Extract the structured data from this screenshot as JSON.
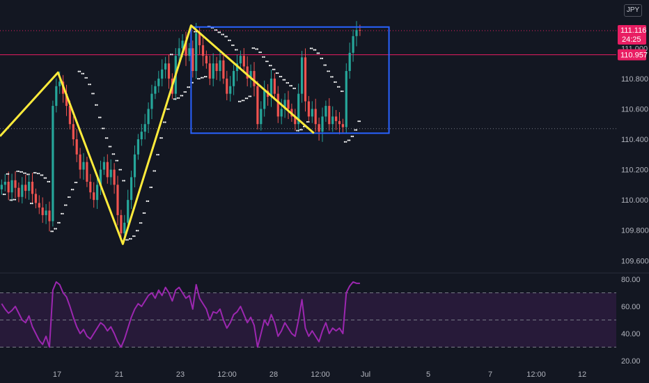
{
  "currency_button": "JPY",
  "last_price": {
    "value": "111.116",
    "countdown": "24:25"
  },
  "level_line": {
    "value": "110.957"
  },
  "colors": {
    "background": "#131722",
    "bull_candle": "#26a69a",
    "bear_candle": "#ef5350",
    "zigzag": "#ffeb3b",
    "rectangle": "#2962ff",
    "psar_dots": "#ffffff",
    "rsi_line": "#9c27b0",
    "rsi_band": "#2b1b3d",
    "price_tag": "#e91e63"
  },
  "chart_data": [
    {
      "type": "candlestick",
      "title": "",
      "symbol": "",
      "y_ticks": [
        "109.600",
        "109.800",
        "110.000",
        "110.200",
        "110.400",
        "110.600",
        "110.800",
        "111.000"
      ],
      "ylim": [
        109.56,
        111.24
      ],
      "x_ticks": [
        "17",
        "21",
        "23",
        "12:00",
        "28",
        "12:00",
        "Jul",
        "5",
        "7",
        "12:00",
        "12"
      ],
      "zigzag_points": [
        [
          0,
          110.42
        ],
        [
          17,
          110.84
        ],
        [
          36,
          109.71
        ],
        [
          56,
          111.15
        ],
        [
          92,
          110.44
        ]
      ],
      "channel_rectangle": {
        "price_top": 111.14,
        "price_bottom": 110.44
      },
      "dotted_level": 110.47,
      "close_path": [
        110.1,
        110.12,
        110.05,
        110.13,
        110.08,
        110.02,
        110.1,
        110.06,
        110.12,
        110.04,
        109.98,
        109.95,
        109.9,
        109.93,
        109.86,
        110.62,
        110.75,
        110.78,
        110.7,
        110.62,
        110.5,
        110.4,
        110.3,
        110.2,
        110.25,
        110.12,
        110.05,
        110.0,
        110.1,
        110.2,
        110.25,
        110.15,
        110.2,
        110.1,
        109.9,
        109.78,
        109.85,
        110.0,
        110.15,
        110.3,
        110.4,
        110.45,
        110.5,
        110.6,
        110.7,
        110.75,
        110.8,
        110.86,
        110.9,
        110.8,
        110.7,
        110.95,
        111.0,
        111.05,
        110.95,
        111.0,
        110.85,
        111.1,
        111.02,
        110.95,
        110.9,
        110.8,
        110.9,
        110.85,
        110.92,
        110.8,
        110.7,
        110.75,
        110.85,
        110.9,
        110.95,
        110.88,
        110.8,
        110.85,
        110.75,
        110.5,
        110.6,
        110.72,
        110.68,
        110.8,
        110.7,
        110.55,
        110.6,
        110.66,
        110.6,
        110.55,
        110.5,
        110.7,
        110.94,
        110.65,
        110.55,
        110.6,
        110.5,
        110.45,
        110.55,
        110.62,
        110.5,
        110.55,
        110.52,
        110.5,
        110.48,
        110.85,
        110.97,
        111.08,
        111.12,
        111.116
      ]
    },
    {
      "type": "line",
      "title": "",
      "name": "",
      "y_ticks": [
        "20.00",
        "40.00",
        "60.00",
        "80.00"
      ],
      "ylim": [
        20,
        80
      ],
      "bands": {
        "upper": 70,
        "middle": 50,
        "lower": 30
      },
      "values": [
        62,
        58,
        55,
        57,
        60,
        55,
        50,
        48,
        53,
        45,
        40,
        35,
        32,
        38,
        30,
        72,
        78,
        76,
        70,
        67,
        60,
        52,
        45,
        40,
        43,
        38,
        36,
        40,
        44,
        48,
        46,
        42,
        45,
        40,
        34,
        30,
        36,
        44,
        52,
        58,
        62,
        60,
        64,
        68,
        70,
        66,
        72,
        68,
        74,
        70,
        64,
        72,
        74,
        70,
        66,
        68,
        58,
        76,
        66,
        62,
        58,
        50,
        56,
        55,
        58,
        50,
        44,
        48,
        54,
        56,
        60,
        54,
        48,
        52,
        46,
        30,
        40,
        50,
        46,
        54,
        48,
        38,
        42,
        48,
        44,
        40,
        38,
        50,
        65,
        44,
        38,
        42,
        38,
        34,
        42,
        48,
        40,
        44,
        42,
        44,
        40,
        70,
        75,
        78,
        77,
        77
      ]
    }
  ]
}
